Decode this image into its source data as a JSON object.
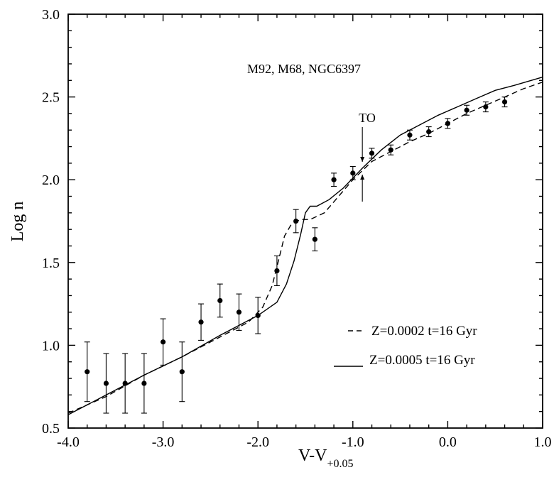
{
  "chart_data": {
    "type": "line",
    "title": "M92, M68, NGC6397",
    "xlabel": "V-V",
    "xlabel_subscript": "+0.05",
    "ylabel": "Log n",
    "xlim": [
      -4.0,
      1.0
    ],
    "ylim": [
      0.5,
      3.0
    ],
    "x_ticks": [
      -4.0,
      -3.0,
      -2.0,
      -1.0,
      0.0,
      1.0
    ],
    "x_tick_labels": [
      "-4.0",
      "-3.0",
      "-2.0",
      "-1.0",
      "0.0",
      "1.0"
    ],
    "y_ticks": [
      0.5,
      1.0,
      1.5,
      2.0,
      2.5,
      3.0
    ],
    "y_tick_labels": [
      "0.5",
      "1.0",
      "1.5",
      "2.0",
      "2.5",
      "3.0"
    ],
    "grid": false,
    "legend_position": "bottom-right",
    "annotation": {
      "text": "TO",
      "x": -0.9
    },
    "series": [
      {
        "name": "Z=0.0002 t=16 Gyr",
        "style": "dashed",
        "points": [
          [
            -4.0,
            0.59
          ],
          [
            -3.6,
            0.69
          ],
          [
            -3.2,
            0.82
          ],
          [
            -2.8,
            0.93
          ],
          [
            -2.4,
            1.05
          ],
          [
            -2.1,
            1.14
          ],
          [
            -1.95,
            1.23
          ],
          [
            -1.85,
            1.36
          ],
          [
            -1.78,
            1.52
          ],
          [
            -1.72,
            1.66
          ],
          [
            -1.65,
            1.73
          ],
          [
            -1.55,
            1.76
          ],
          [
            -1.45,
            1.76
          ],
          [
            -1.3,
            1.8
          ],
          [
            -1.15,
            1.9
          ],
          [
            -1.0,
            2.0
          ],
          [
            -0.8,
            2.11
          ],
          [
            -0.6,
            2.17
          ],
          [
            -0.4,
            2.23
          ],
          [
            -0.2,
            2.28
          ],
          [
            0.0,
            2.34
          ],
          [
            0.2,
            2.4
          ],
          [
            0.4,
            2.45
          ],
          [
            0.6,
            2.5
          ],
          [
            0.8,
            2.55
          ],
          [
            1.0,
            2.59
          ]
        ]
      },
      {
        "name": "Z=0.0005 t=16 Gyr",
        "style": "solid",
        "points": [
          [
            -4.0,
            0.58
          ],
          [
            -3.6,
            0.7
          ],
          [
            -3.2,
            0.82
          ],
          [
            -2.8,
            0.93
          ],
          [
            -2.4,
            1.06
          ],
          [
            -2.0,
            1.18
          ],
          [
            -1.8,
            1.26
          ],
          [
            -1.7,
            1.37
          ],
          [
            -1.62,
            1.51
          ],
          [
            -1.55,
            1.67
          ],
          [
            -1.5,
            1.8
          ],
          [
            -1.45,
            1.84
          ],
          [
            -1.38,
            1.84
          ],
          [
            -1.25,
            1.88
          ],
          [
            -1.1,
            1.95
          ],
          [
            -0.9,
            2.07
          ],
          [
            -0.7,
            2.18
          ],
          [
            -0.5,
            2.27
          ],
          [
            -0.3,
            2.33
          ],
          [
            -0.1,
            2.39
          ],
          [
            0.1,
            2.44
          ],
          [
            0.3,
            2.49
          ],
          [
            0.5,
            2.54
          ],
          [
            0.7,
            2.57
          ],
          [
            1.0,
            2.62
          ]
        ]
      }
    ],
    "observed": {
      "x": [
        -3.8,
        -3.6,
        -3.4,
        -3.2,
        -3.0,
        -2.8,
        -2.6,
        -2.4,
        -2.2,
        -2.0,
        -1.8,
        -1.6,
        -1.4,
        -1.2,
        -1.0,
        -0.8,
        -0.6,
        -0.4,
        -0.2,
        0.0,
        0.2,
        0.4,
        0.6
      ],
      "y": [
        0.84,
        0.77,
        0.77,
        0.77,
        1.02,
        0.84,
        1.14,
        1.27,
        1.2,
        1.18,
        1.45,
        1.75,
        1.64,
        2.0,
        2.04,
        2.16,
        2.18,
        2.27,
        2.29,
        2.34,
        2.42,
        2.44,
        2.47
      ],
      "yerr": [
        0.18,
        0.18,
        0.18,
        0.18,
        0.14,
        0.18,
        0.11,
        0.1,
        0.11,
        0.11,
        0.09,
        0.07,
        0.07,
        0.04,
        0.04,
        0.03,
        0.03,
        0.03,
        0.03,
        0.03,
        0.03,
        0.03,
        0.03
      ]
    }
  }
}
